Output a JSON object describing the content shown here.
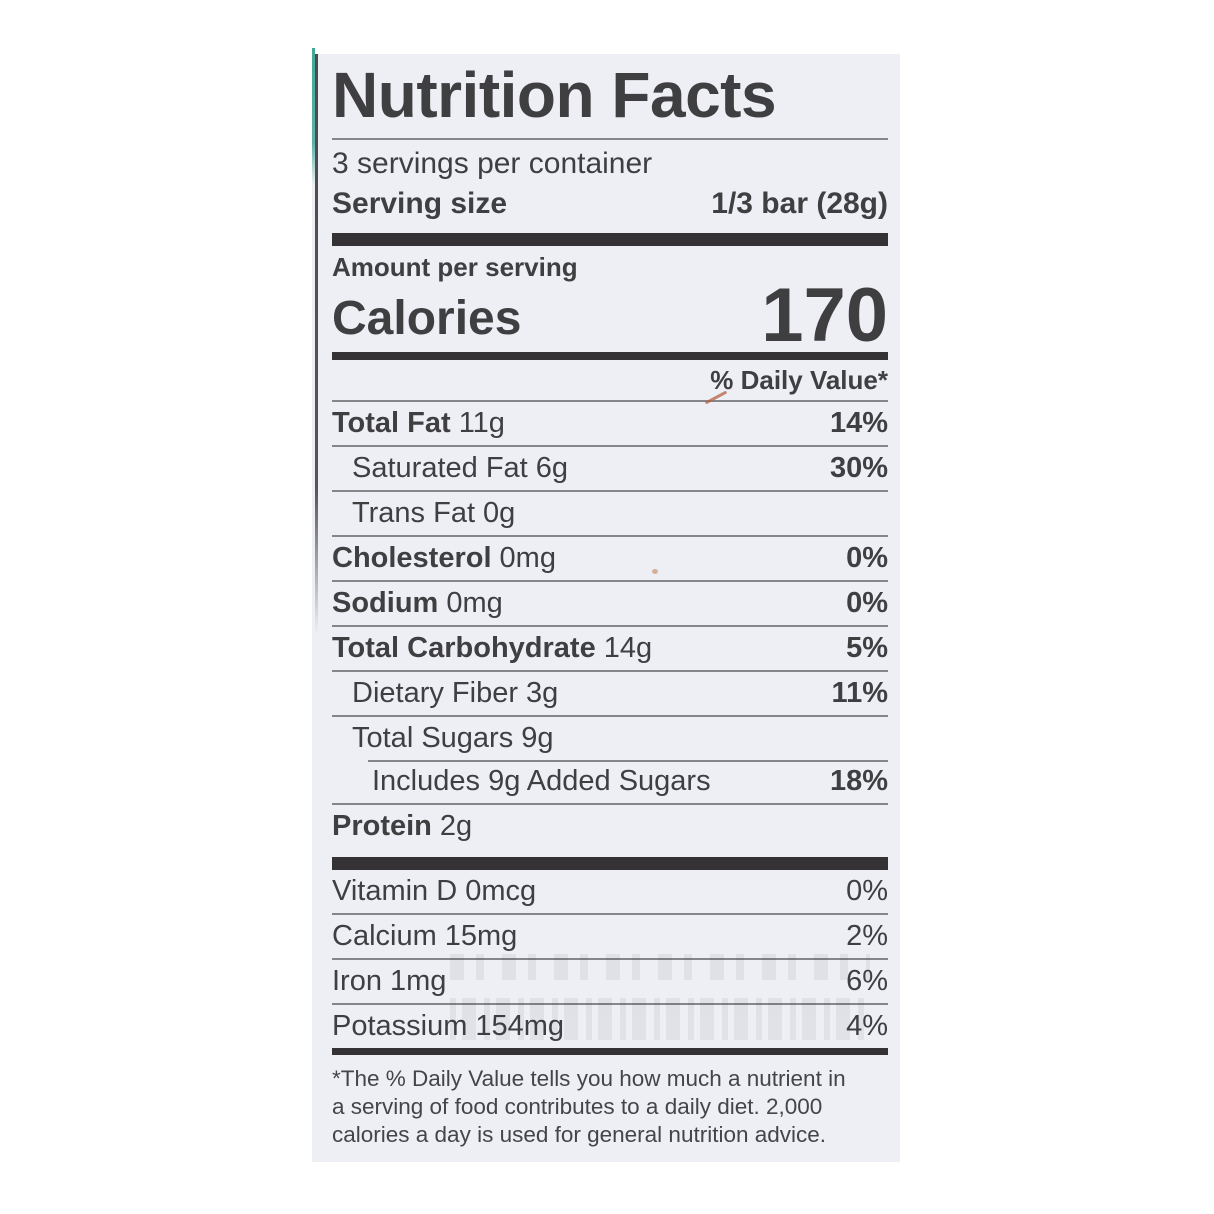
{
  "label": {
    "title": "Nutrition Facts",
    "servings_per_container": "3 servings per container",
    "serving_size_label": "Serving size",
    "serving_size_value": "1/3 bar (28g)",
    "amount_per_serving": "Amount per serving",
    "calories_label": "Calories",
    "calories_value": "170",
    "daily_value_header": "% Daily Value*",
    "nutrients": [
      {
        "name": "Total Fat",
        "amount": "11g",
        "dv": "14%"
      },
      {
        "name": "Saturated Fat",
        "amount": "6g",
        "dv": "30%"
      },
      {
        "name": "Trans Fat",
        "amount": "0g",
        "dv": ""
      },
      {
        "name": "Cholesterol",
        "amount": "0mg",
        "dv": "0%"
      },
      {
        "name": "Sodium",
        "amount": "0mg",
        "dv": "0%"
      },
      {
        "name": "Total Carbohydrate",
        "amount": "14g",
        "dv": "5%"
      },
      {
        "name": "Dietary Fiber",
        "amount": "3g",
        "dv": "11%"
      },
      {
        "name": "Total Sugars",
        "amount": "9g",
        "dv": ""
      },
      {
        "name": "Includes 9g Added Sugars",
        "amount": "",
        "dv": "18%"
      },
      {
        "name": "Protein",
        "amount": "2g",
        "dv": ""
      }
    ],
    "micronutrients": [
      {
        "name": "Vitamin D",
        "amount": "0mcg",
        "dv": "0%"
      },
      {
        "name": "Calcium",
        "amount": "15mg",
        "dv": "2%"
      },
      {
        "name": "Iron",
        "amount": "1mg",
        "dv": "6%"
      },
      {
        "name": "Potassium",
        "amount": "154mg",
        "dv": "4%"
      }
    ],
    "footnote": "*The % Daily Value tells you how much a nutrient in a serving of food contributes to a daily diet. 2,000 calories a day is used for general nutrition advice.",
    "colors": {
      "label_background": "#edeff5",
      "text": "#3f3f42",
      "section_bar": "#343235",
      "hairline": "#85868a",
      "teal_edge": "#41a898"
    }
  }
}
